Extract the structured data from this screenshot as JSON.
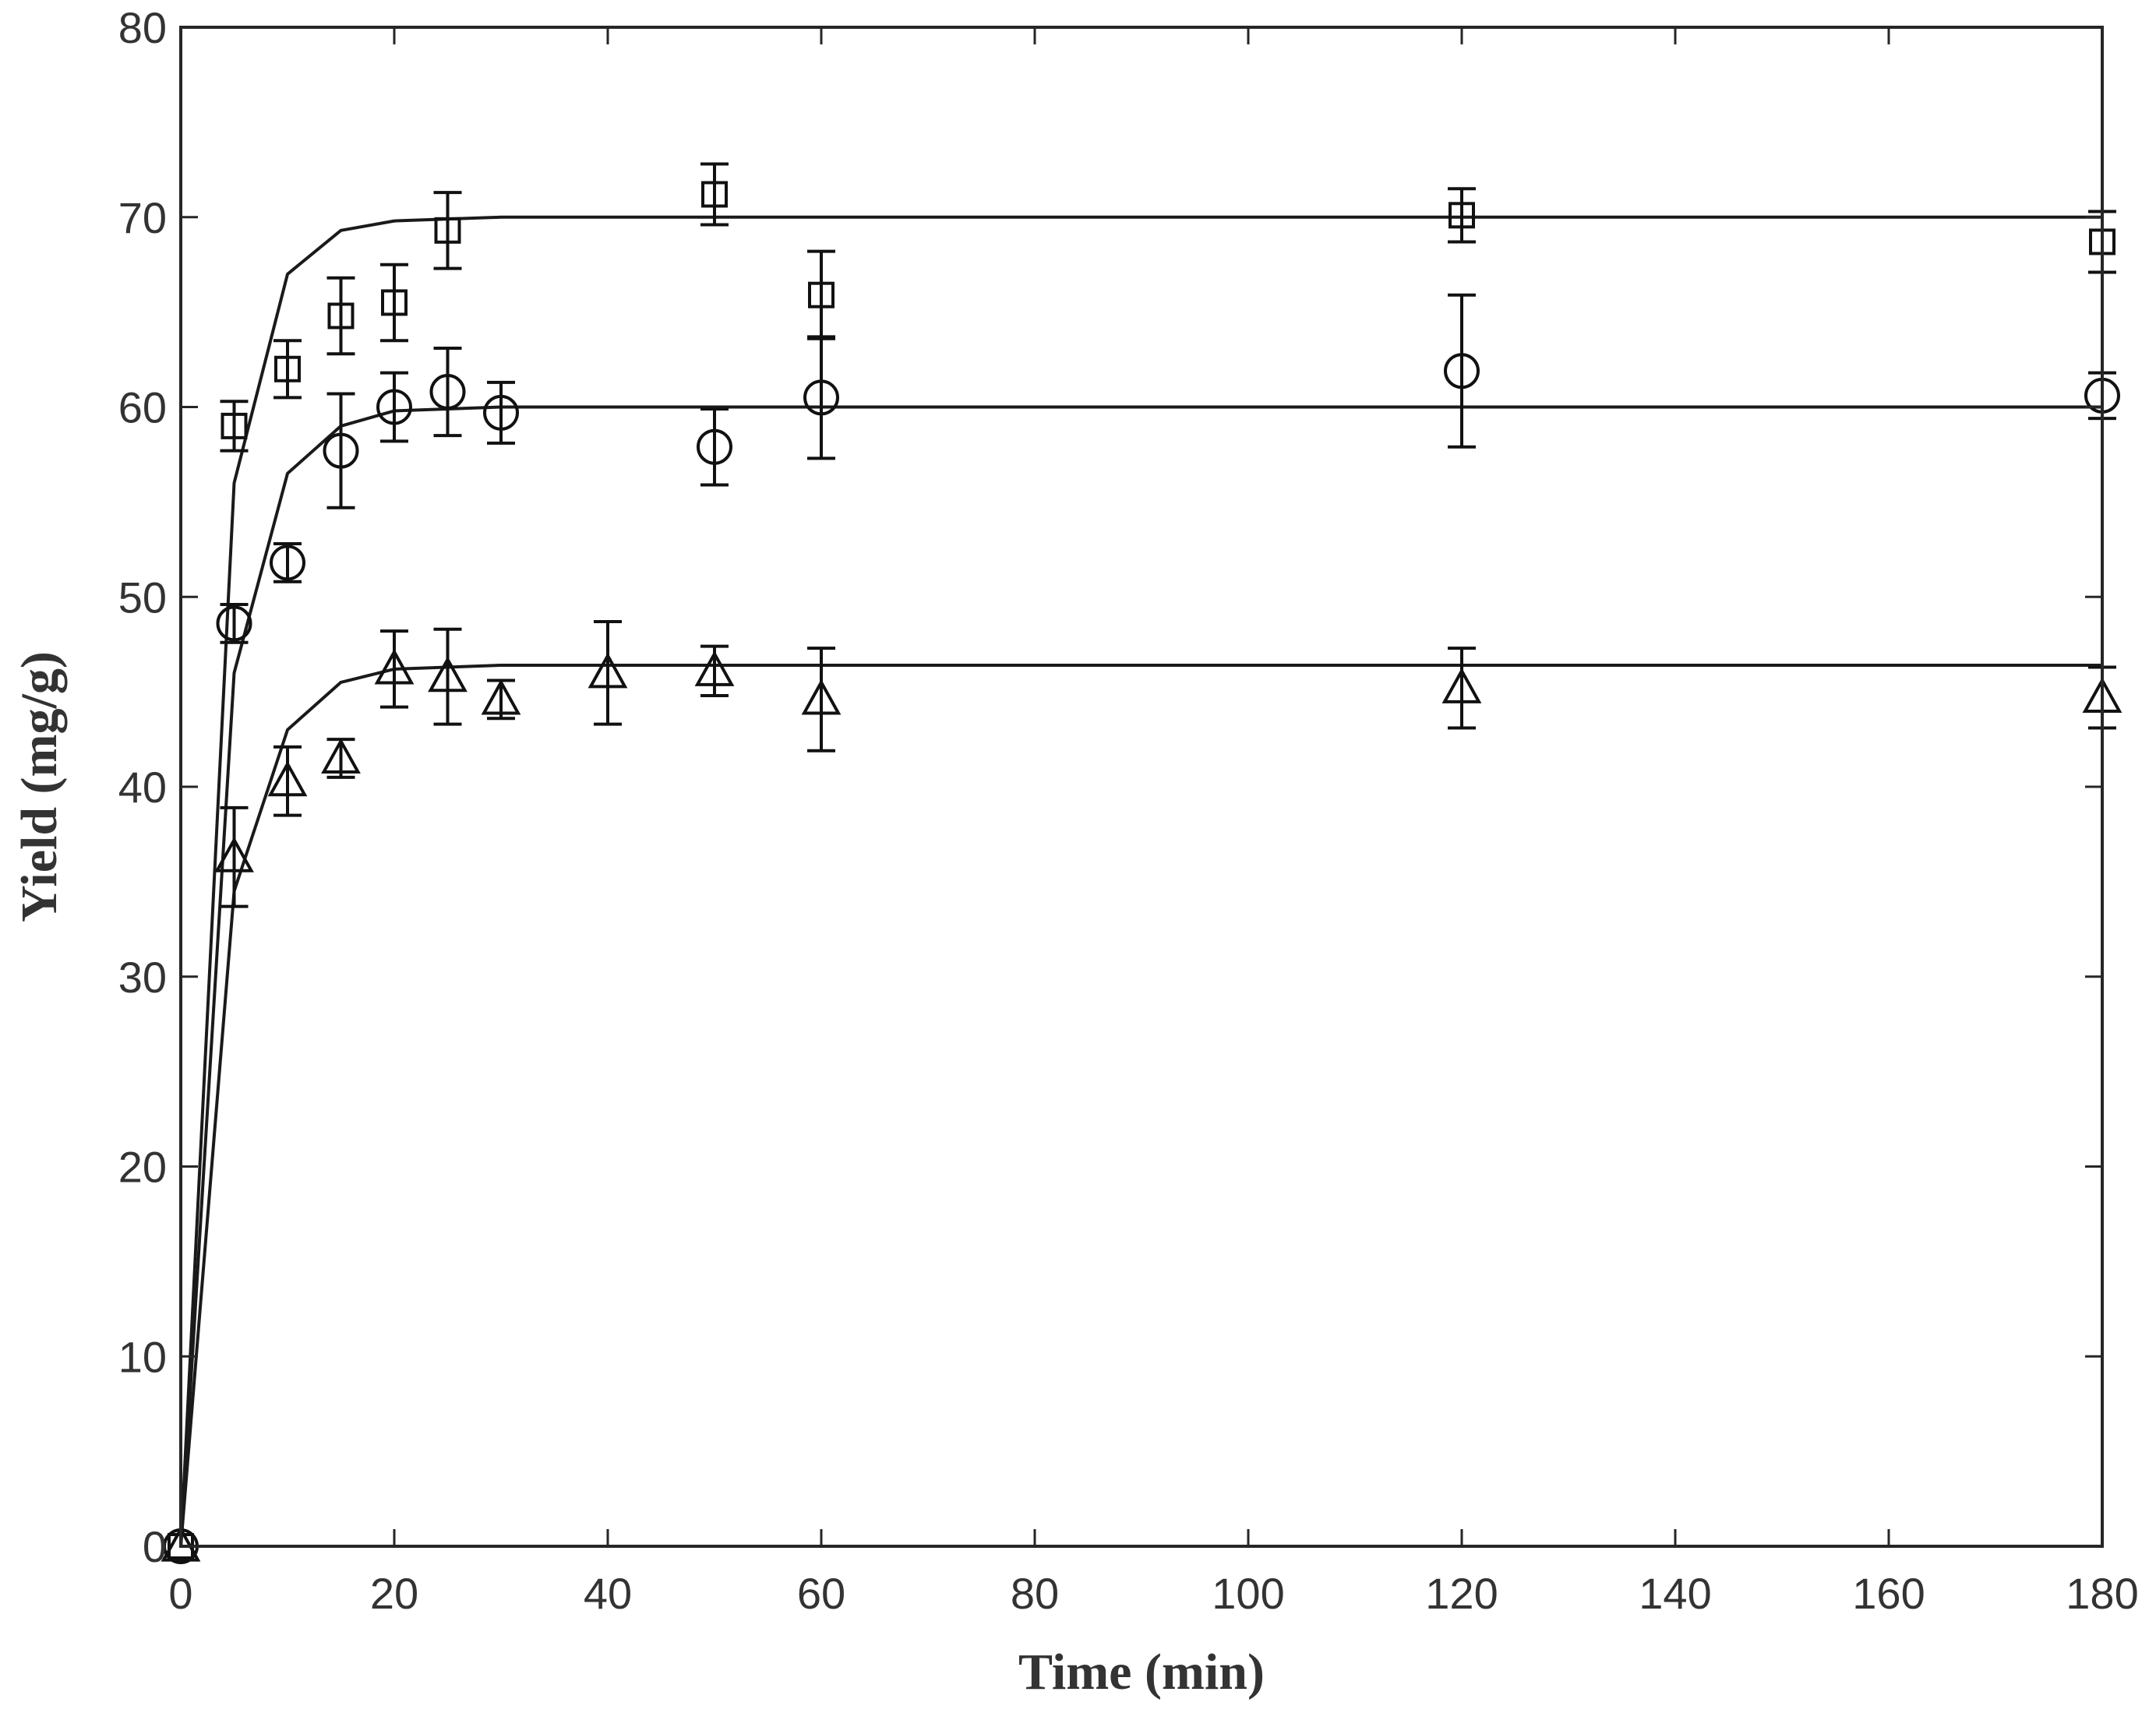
{
  "chart_data": {
    "type": "scatter",
    "title": "",
    "xlabel": "Time (min)",
    "ylabel": "Yield (mg/g)",
    "xlim": [
      0,
      180
    ],
    "ylim": [
      0,
      80
    ],
    "xticks": [
      0,
      20,
      40,
      60,
      80,
      100,
      120,
      140,
      160,
      180
    ],
    "yticks": [
      0,
      10,
      20,
      30,
      40,
      50,
      60,
      70,
      80
    ],
    "grid": false,
    "legend": "none",
    "series": [
      {
        "name": "square",
        "marker": "square",
        "points": [
          {
            "x": 0,
            "y": 0,
            "err": 0
          },
          {
            "x": 5,
            "y": 59,
            "err": 1.3
          },
          {
            "x": 10,
            "y": 62,
            "err": 1.5
          },
          {
            "x": 15,
            "y": 64.8,
            "err": 2.0
          },
          {
            "x": 20,
            "y": 65.5,
            "err": 2.0
          },
          {
            "x": 25,
            "y": 69.3,
            "err": 2.0
          },
          {
            "x": 50,
            "y": 71.2,
            "err": 1.6
          },
          {
            "x": 60,
            "y": 65.9,
            "err": 2.3
          },
          {
            "x": 120,
            "y": 70.1,
            "err": 1.4
          },
          {
            "x": 180,
            "y": 68.7,
            "err": 1.6
          }
        ],
        "fit": [
          [
            0,
            0
          ],
          [
            5,
            56
          ],
          [
            10,
            67
          ],
          [
            15,
            69.3
          ],
          [
            20,
            69.8
          ],
          [
            30,
            70
          ],
          [
            180,
            70
          ]
        ]
      },
      {
        "name": "circle",
        "marker": "circle",
        "points": [
          {
            "x": 0,
            "y": 0,
            "err": 0
          },
          {
            "x": 5,
            "y": 48.6,
            "err": 1.0
          },
          {
            "x": 10,
            "y": 51.8,
            "err": 1.0
          },
          {
            "x": 15,
            "y": 57.7,
            "err": 3.0
          },
          {
            "x": 20,
            "y": 60,
            "err": 1.8
          },
          {
            "x": 25,
            "y": 60.8,
            "err": 2.3
          },
          {
            "x": 30,
            "y": 59.7,
            "err": 1.6
          },
          {
            "x": 50,
            "y": 57.9,
            "err": 2.0
          },
          {
            "x": 60,
            "y": 60.5,
            "err": 3.2
          },
          {
            "x": 120,
            "y": 61.9,
            "err": 4.0
          },
          {
            "x": 180,
            "y": 60.6,
            "err": 1.2
          }
        ],
        "fit": [
          [
            0,
            0
          ],
          [
            5,
            46
          ],
          [
            10,
            56.5
          ],
          [
            15,
            59
          ],
          [
            20,
            59.8
          ],
          [
            30,
            60
          ],
          [
            180,
            60
          ]
        ]
      },
      {
        "name": "triangle",
        "marker": "triangle",
        "points": [
          {
            "x": 0,
            "y": 0,
            "err": 0
          },
          {
            "x": 5,
            "y": 36.3,
            "err": 2.6
          },
          {
            "x": 10,
            "y": 40.3,
            "err": 1.8
          },
          {
            "x": 15,
            "y": 41.5,
            "err": 1.0
          },
          {
            "x": 20,
            "y": 46.2,
            "err": 2.0
          },
          {
            "x": 25,
            "y": 45.8,
            "err": 2.5
          },
          {
            "x": 30,
            "y": 44.6,
            "err": 1.0
          },
          {
            "x": 40,
            "y": 46,
            "err": 2.7
          },
          {
            "x": 50,
            "y": 46.1,
            "err": 1.3
          },
          {
            "x": 60,
            "y": 44.6,
            "err": 2.7
          },
          {
            "x": 120,
            "y": 45.2,
            "err": 2.1
          },
          {
            "x": 180,
            "y": 44.7,
            "err": 1.6
          }
        ],
        "fit": [
          [
            0,
            0
          ],
          [
            5,
            34.5
          ],
          [
            10,
            43
          ],
          [
            15,
            45.5
          ],
          [
            20,
            46.2
          ],
          [
            30,
            46.4
          ],
          [
            180,
            46.4
          ]
        ]
      }
    ]
  }
}
